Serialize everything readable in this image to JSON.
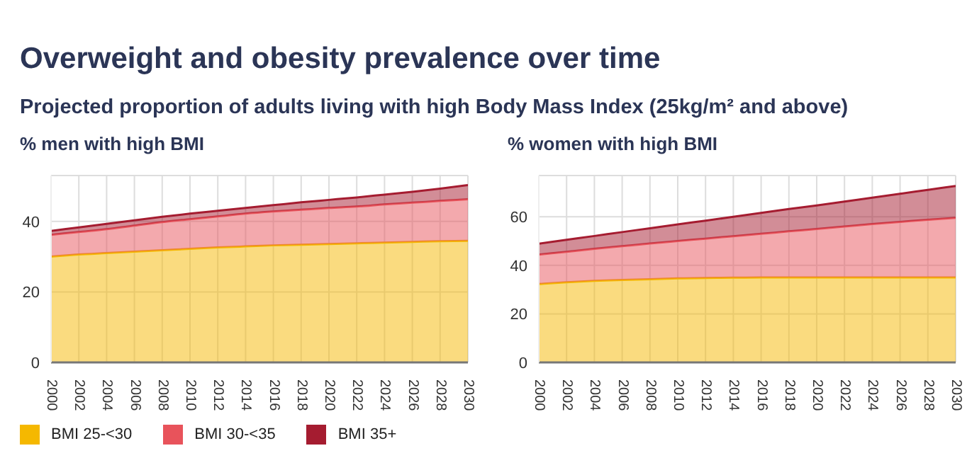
{
  "chart_data": [
    {
      "type": "area",
      "title": "Overweight and obesity prevalence over time",
      "subtitle": "Projected proportion of adults living with high Body Mass Index (25kg/m² and above)",
      "ylabel": "% men with high BMI",
      "stacked": true,
      "grid": true,
      "legend": "bottom",
      "x": [
        2000,
        2002,
        2004,
        2006,
        2008,
        2010,
        2012,
        2014,
        2016,
        2018,
        2020,
        2022,
        2024,
        2026,
        2028,
        2030
      ],
      "xlim": [
        2000,
        2030
      ],
      "xticks": [
        2000,
        2002,
        2004,
        2006,
        2008,
        2010,
        2012,
        2014,
        2016,
        2018,
        2020,
        2022,
        2024,
        2026,
        2028,
        2030
      ],
      "ylim": [
        0,
        53
      ],
      "yticks": [
        0,
        20,
        40
      ],
      "series": [
        {
          "name": "BMI 25-<30",
          "color": "#f5b800",
          "values": [
            30.0,
            30.6,
            31.0,
            31.4,
            31.8,
            32.2,
            32.6,
            32.9,
            33.2,
            33.4,
            33.6,
            33.8,
            34.0,
            34.2,
            34.4,
            34.5
          ]
        },
        {
          "name": "BMI 30-<35",
          "color": "#e8535b",
          "values": [
            6.2,
            6.4,
            6.8,
            7.4,
            8.0,
            8.4,
            8.8,
            9.3,
            9.6,
            9.9,
            10.2,
            10.4,
            10.8,
            11.1,
            11.4,
            11.8
          ]
        },
        {
          "name": "BMI 35+",
          "color": "#a51c30",
          "values": [
            1.1,
            1.3,
            1.5,
            1.5,
            1.5,
            1.6,
            1.6,
            1.6,
            1.8,
            2.1,
            2.3,
            2.6,
            2.8,
            3.1,
            3.5,
            4.0
          ]
        }
      ]
    },
    {
      "type": "area",
      "ylabel": "% women with high BMI",
      "stacked": true,
      "grid": true,
      "x": [
        2000,
        2002,
        2004,
        2006,
        2008,
        2010,
        2012,
        2014,
        2016,
        2018,
        2020,
        2022,
        2024,
        2026,
        2028,
        2030
      ],
      "xlim": [
        2000,
        2030
      ],
      "xticks": [
        2000,
        2002,
        2004,
        2006,
        2008,
        2010,
        2012,
        2014,
        2016,
        2018,
        2020,
        2022,
        2024,
        2026,
        2028,
        2030
      ],
      "ylim": [
        0,
        77
      ],
      "yticks": [
        0,
        20,
        40,
        60
      ],
      "series": [
        {
          "color": "#f5b800",
          "values": [
            32.3,
            33.0,
            33.6,
            34.0,
            34.3,
            34.6,
            34.8,
            34.9,
            35.0,
            35.0,
            35.0,
            35.0,
            35.0,
            35.0,
            35.0,
            35.0
          ]
        },
        {
          "color": "#e8535b",
          "values": [
            12.1,
            12.6,
            13.2,
            13.9,
            14.7,
            15.4,
            16.2,
            17.1,
            18.0,
            19.0,
            20.0,
            21.0,
            22.0,
            22.9,
            23.8,
            24.6
          ]
        },
        {
          "color": "#a51c30",
          "values": [
            4.5,
            4.9,
            5.3,
            5.8,
            6.3,
            6.9,
            7.4,
            8.0,
            8.6,
            9.2,
            9.7,
            10.3,
            10.9,
            11.6,
            12.3,
            13.1
          ]
        }
      ]
    }
  ]
}
